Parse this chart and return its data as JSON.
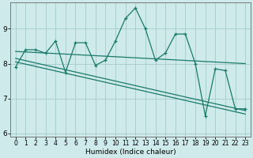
{
  "xlabel": "Humidex (Indice chaleur)",
  "background_color": "#ceeaea",
  "grid_color": "#aacfcf",
  "line_color": "#1a7a6a",
  "x_values": [
    0,
    1,
    2,
    3,
    4,
    5,
    6,
    7,
    8,
    9,
    10,
    11,
    12,
    13,
    14,
    15,
    16,
    17,
    18,
    19,
    20,
    21,
    22,
    23
  ],
  "series1": [
    7.9,
    8.4,
    8.4,
    8.3,
    8.65,
    7.75,
    8.6,
    8.6,
    7.95,
    8.1,
    8.65,
    9.3,
    9.6,
    9.0,
    8.1,
    8.3,
    8.85,
    8.85,
    8.0,
    6.5,
    7.85,
    7.8,
    6.7,
    6.7
  ],
  "trend1_x": [
    0,
    23
  ],
  "trend1_y": [
    8.35,
    8.0
  ],
  "trend2_x": [
    0,
    23
  ],
  "trend2_y": [
    8.15,
    6.65
  ],
  "trend3_x": [
    0,
    23
  ],
  "trend3_y": [
    8.05,
    6.55
  ],
  "ylim": [
    5.9,
    9.75
  ],
  "xlim": [
    -0.5,
    23.5
  ],
  "yticks": [
    6,
    7,
    8,
    9
  ],
  "xticks": [
    0,
    1,
    2,
    3,
    4,
    5,
    6,
    7,
    8,
    9,
    10,
    11,
    12,
    13,
    14,
    15,
    16,
    17,
    18,
    19,
    20,
    21,
    22,
    23
  ]
}
